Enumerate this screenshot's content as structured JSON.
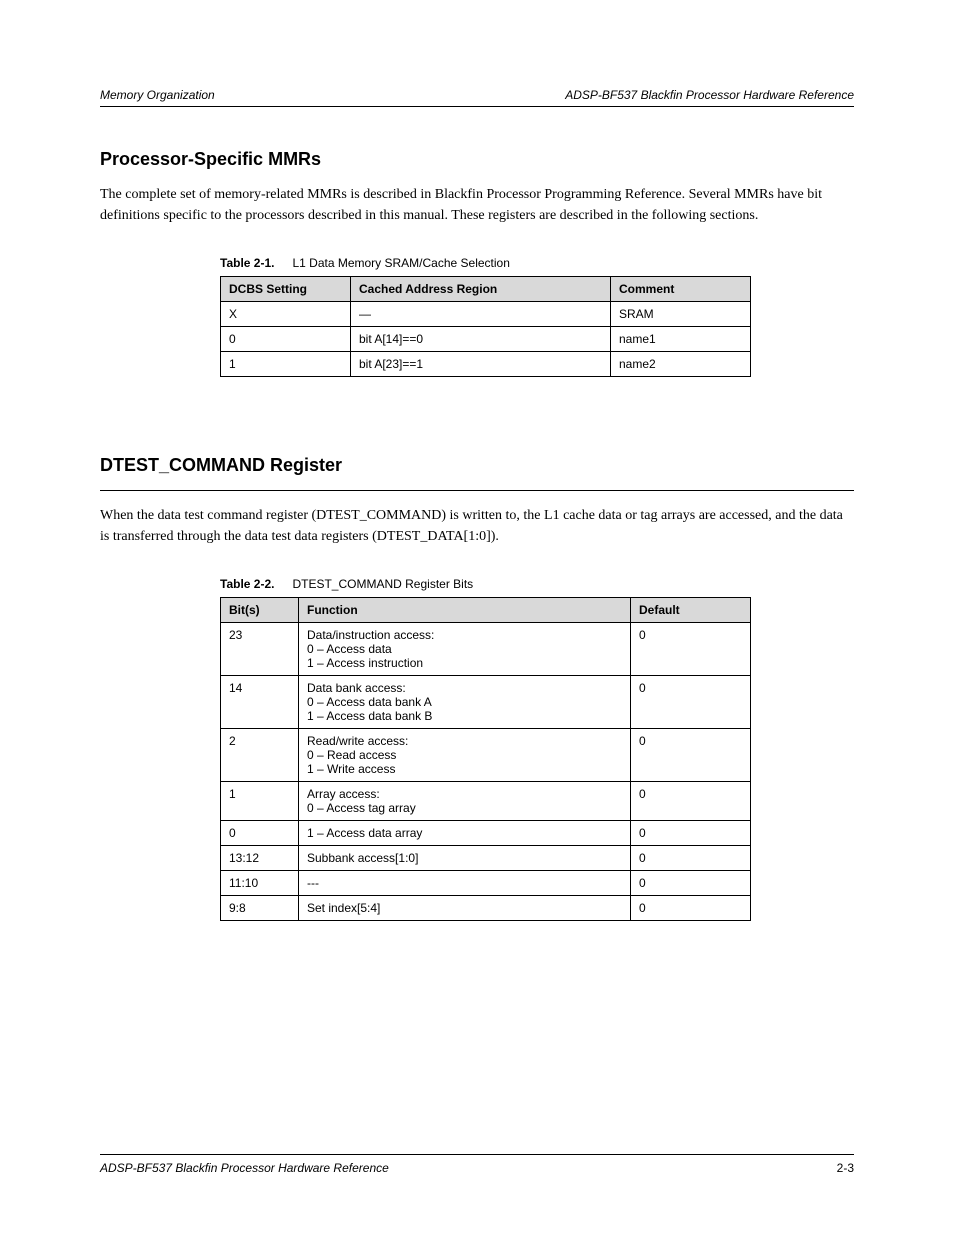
{
  "header": {
    "left": "Memory Organization",
    "right": "ADSP-BF537 Blackfin Processor Hardware Reference"
  },
  "section1": {
    "title": "Processor-Specific MMRs",
    "para": "The complete set of memory-related MMRs is described in Blackfin Processor Programming Reference. Several MMRs have bit definitions specific to the processors described in this manual. These registers are described in the following sections.",
    "table_caption_num": "Table 2-1.",
    "table_caption_text": "L1 Data Memory SRAM/Cache Selection",
    "columns": [
      "DCBS Setting",
      "Cached Address Region",
      "Comment"
    ],
    "rows": [
      [
        "X",
        "—",
        "SRAM"
      ],
      [
        "0",
        "bit A[14]==0",
        "name1"
      ],
      [
        "1",
        "bit A[23]==1",
        "name2"
      ]
    ]
  },
  "section2": {
    "title": "DTEST_COMMAND Register",
    "para": "When the data test command register (DTEST_COMMAND) is written to, the L1 cache data or tag arrays are accessed, and the data is transferred through the data test data registers (DTEST_DATA[1:0]).",
    "table_caption_num": "Table 2-2.",
    "table_caption_text": "DTEST_COMMAND Register Bits",
    "columns": [
      "Bit(s)",
      "Function",
      "Default"
    ],
    "rows": [
      [
        "23",
        "Data/instruction access:\n0 – Access data\n1 – Access instruction",
        "0"
      ],
      [
        "14",
        "Data bank access:\n0 – Access data bank A\n1 – Access data bank B",
        "0"
      ],
      [
        "2",
        "Read/write access:\n0 – Read access\n1 – Write access",
        "0"
      ],
      [
        "1",
        "Array access:\n0 – Access tag array",
        "0"
      ],
      [
        "0",
        "1 – Access data array",
        "0"
      ],
      [
        "13:12",
        "Subbank access[1:0]",
        "0"
      ],
      [
        "11:10",
        "---",
        "0"
      ],
      [
        "9:8",
        "Set index[5:4]",
        "0"
      ]
    ]
  },
  "footer": {
    "left": "ADSP-BF537 Blackfin Processor Hardware Reference",
    "right": "2-3"
  },
  "style": {
    "header_bg": "#d9d9d9",
    "border_color": "#000000",
    "font_body": "Times New Roman",
    "font_ui": "Arial"
  }
}
